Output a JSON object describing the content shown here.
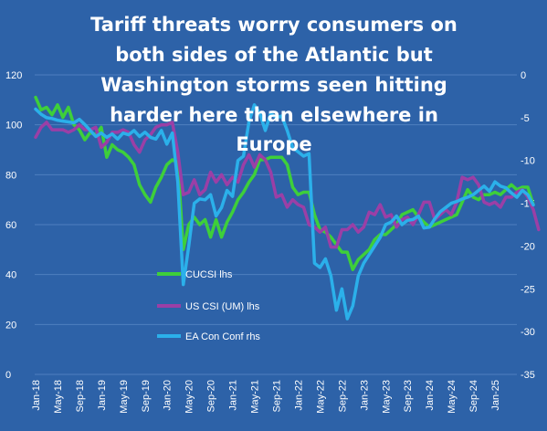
{
  "chart_data": {
    "type": "line",
    "title_lines": [
      "Tariff threats worry consumers on",
      "both sides of the Atlantic but",
      "Washington storms seen hitting",
      "harder here than elsewhere in",
      "Europe"
    ],
    "y_left_ticks": [
      "120",
      "100",
      "80",
      "60",
      "40",
      "20",
      "0"
    ],
    "y_left_range": [
      0,
      120
    ],
    "y_right_ticks": [
      "0",
      "-5",
      "-10",
      "-15",
      "-20",
      "-25",
      "-30",
      "-35"
    ],
    "y_right_range": [
      -35,
      0
    ],
    "x_ticks": [
      "Jan-18",
      "May-18",
      "Sep-18",
      "Jan-19",
      "May-19",
      "Sep-19",
      "Jan-20",
      "May-20",
      "Sep-20",
      "Jan-21",
      "May-21",
      "Sep-21",
      "Jan-22",
      "May-22",
      "Sep-22",
      "Jan-23",
      "May-23",
      "Sep-23",
      "Jan-24",
      "May-24",
      "Sep-24",
      "Jan-25"
    ],
    "grid": true,
    "legend_position": "lower-left inside plot",
    "series": [
      {
        "name": "CUCSI lhs",
        "axis": "left",
        "color": "#3ecf3a",
        "values": [
          111,
          106,
          107,
          104,
          108,
          103,
          107,
          100,
          98,
          94,
          97,
          96,
          99,
          87,
          92,
          90,
          89,
          87,
          84,
          76,
          72,
          69,
          75,
          79,
          84,
          86,
          85,
          50,
          60,
          63,
          60,
          62,
          55,
          62,
          55,
          61,
          65,
          70,
          73,
          77,
          80,
          86,
          86,
          87,
          87,
          87,
          84,
          75,
          72,
          73,
          73,
          64,
          58,
          57,
          55,
          52,
          49,
          49,
          42,
          46,
          48,
          50,
          54,
          56,
          56,
          58,
          60,
          64,
          65,
          66,
          63,
          61,
          59,
          60,
          61,
          62,
          63,
          64,
          69,
          74,
          71,
          70,
          72,
          72,
          73,
          72,
          74,
          76,
          74,
          75,
          75,
          68
        ]
      },
      {
        "name": "US CSI (UM) lhs",
        "axis": "left",
        "color": "#9b3fa6",
        "values": [
          95,
          99,
          101,
          98,
          98,
          98,
          97,
          98,
          100,
          98,
          98,
          99,
          91,
          93,
          97,
          97,
          98,
          97,
          92,
          89,
          94,
          96,
          99,
          100,
          100,
          101,
          89,
          72,
          73,
          78,
          72,
          74,
          81,
          77,
          80,
          76,
          79,
          77,
          84,
          88,
          83,
          88,
          86,
          81,
          71,
          72,
          67,
          70,
          68,
          67,
          60,
          59,
          57,
          59,
          51,
          51,
          58,
          58,
          60,
          57,
          59,
          65,
          64,
          68,
          63,
          64,
          59,
          62,
          63,
          60,
          64,
          69,
          69,
          62,
          64,
          66,
          64,
          69,
          79,
          78,
          79,
          76,
          69,
          68,
          69,
          67,
          71,
          71,
          73,
          74,
          71,
          66,
          58
        ]
      },
      {
        "name": "EA Con Conf rhs",
        "axis": "right",
        "color": "#2bb0ea",
        "values": [
          -4.0,
          -4.6,
          -5.0,
          -5.1,
          -5.3,
          -5.4,
          -5.5,
          -5.6,
          -5.2,
          -5.8,
          -6.5,
          -7.2,
          -6.8,
          -7.3,
          -6.9,
          -7.5,
          -6.8,
          -7.0,
          -6.5,
          -7.2,
          -6.7,
          -7.3,
          -7.5,
          -6.5,
          -8.1,
          -6.8,
          -12.5,
          -24.5,
          -20.0,
          -15.0,
          -14.5,
          -14.6,
          -14.0,
          -16.5,
          -15.5,
          -13.5,
          -14.2,
          -10.0,
          -9.5,
          -5.5,
          -3.5,
          -4.5,
          -6.5,
          -4.5,
          -5.0,
          -4.8,
          -6.5,
          -8.5,
          -9.0,
          -9.5,
          -9.2,
          -22.0,
          -22.5,
          -21.5,
          -23.5,
          -27.5,
          -25.0,
          -28.5,
          -27.0,
          -23.5,
          -22.0,
          -21.0,
          -20.0,
          -19.0,
          -17.5,
          -17.2,
          -16.5,
          -17.5,
          -17.0,
          -16.9,
          -16.5,
          -17.9,
          -17.8,
          -16.8,
          -16.0,
          -15.5,
          -15.0,
          -14.8,
          -14.5,
          -14.3,
          -14.0,
          -13.5,
          -13.0,
          -13.6,
          -12.5,
          -13.0,
          -13.2,
          -13.8,
          -14.3,
          -13.5,
          -14.0,
          -15.2
        ]
      }
    ]
  },
  "colors": {
    "background": "#2d62a8",
    "grid": "#4f7fbf",
    "text": "#ffffff"
  }
}
